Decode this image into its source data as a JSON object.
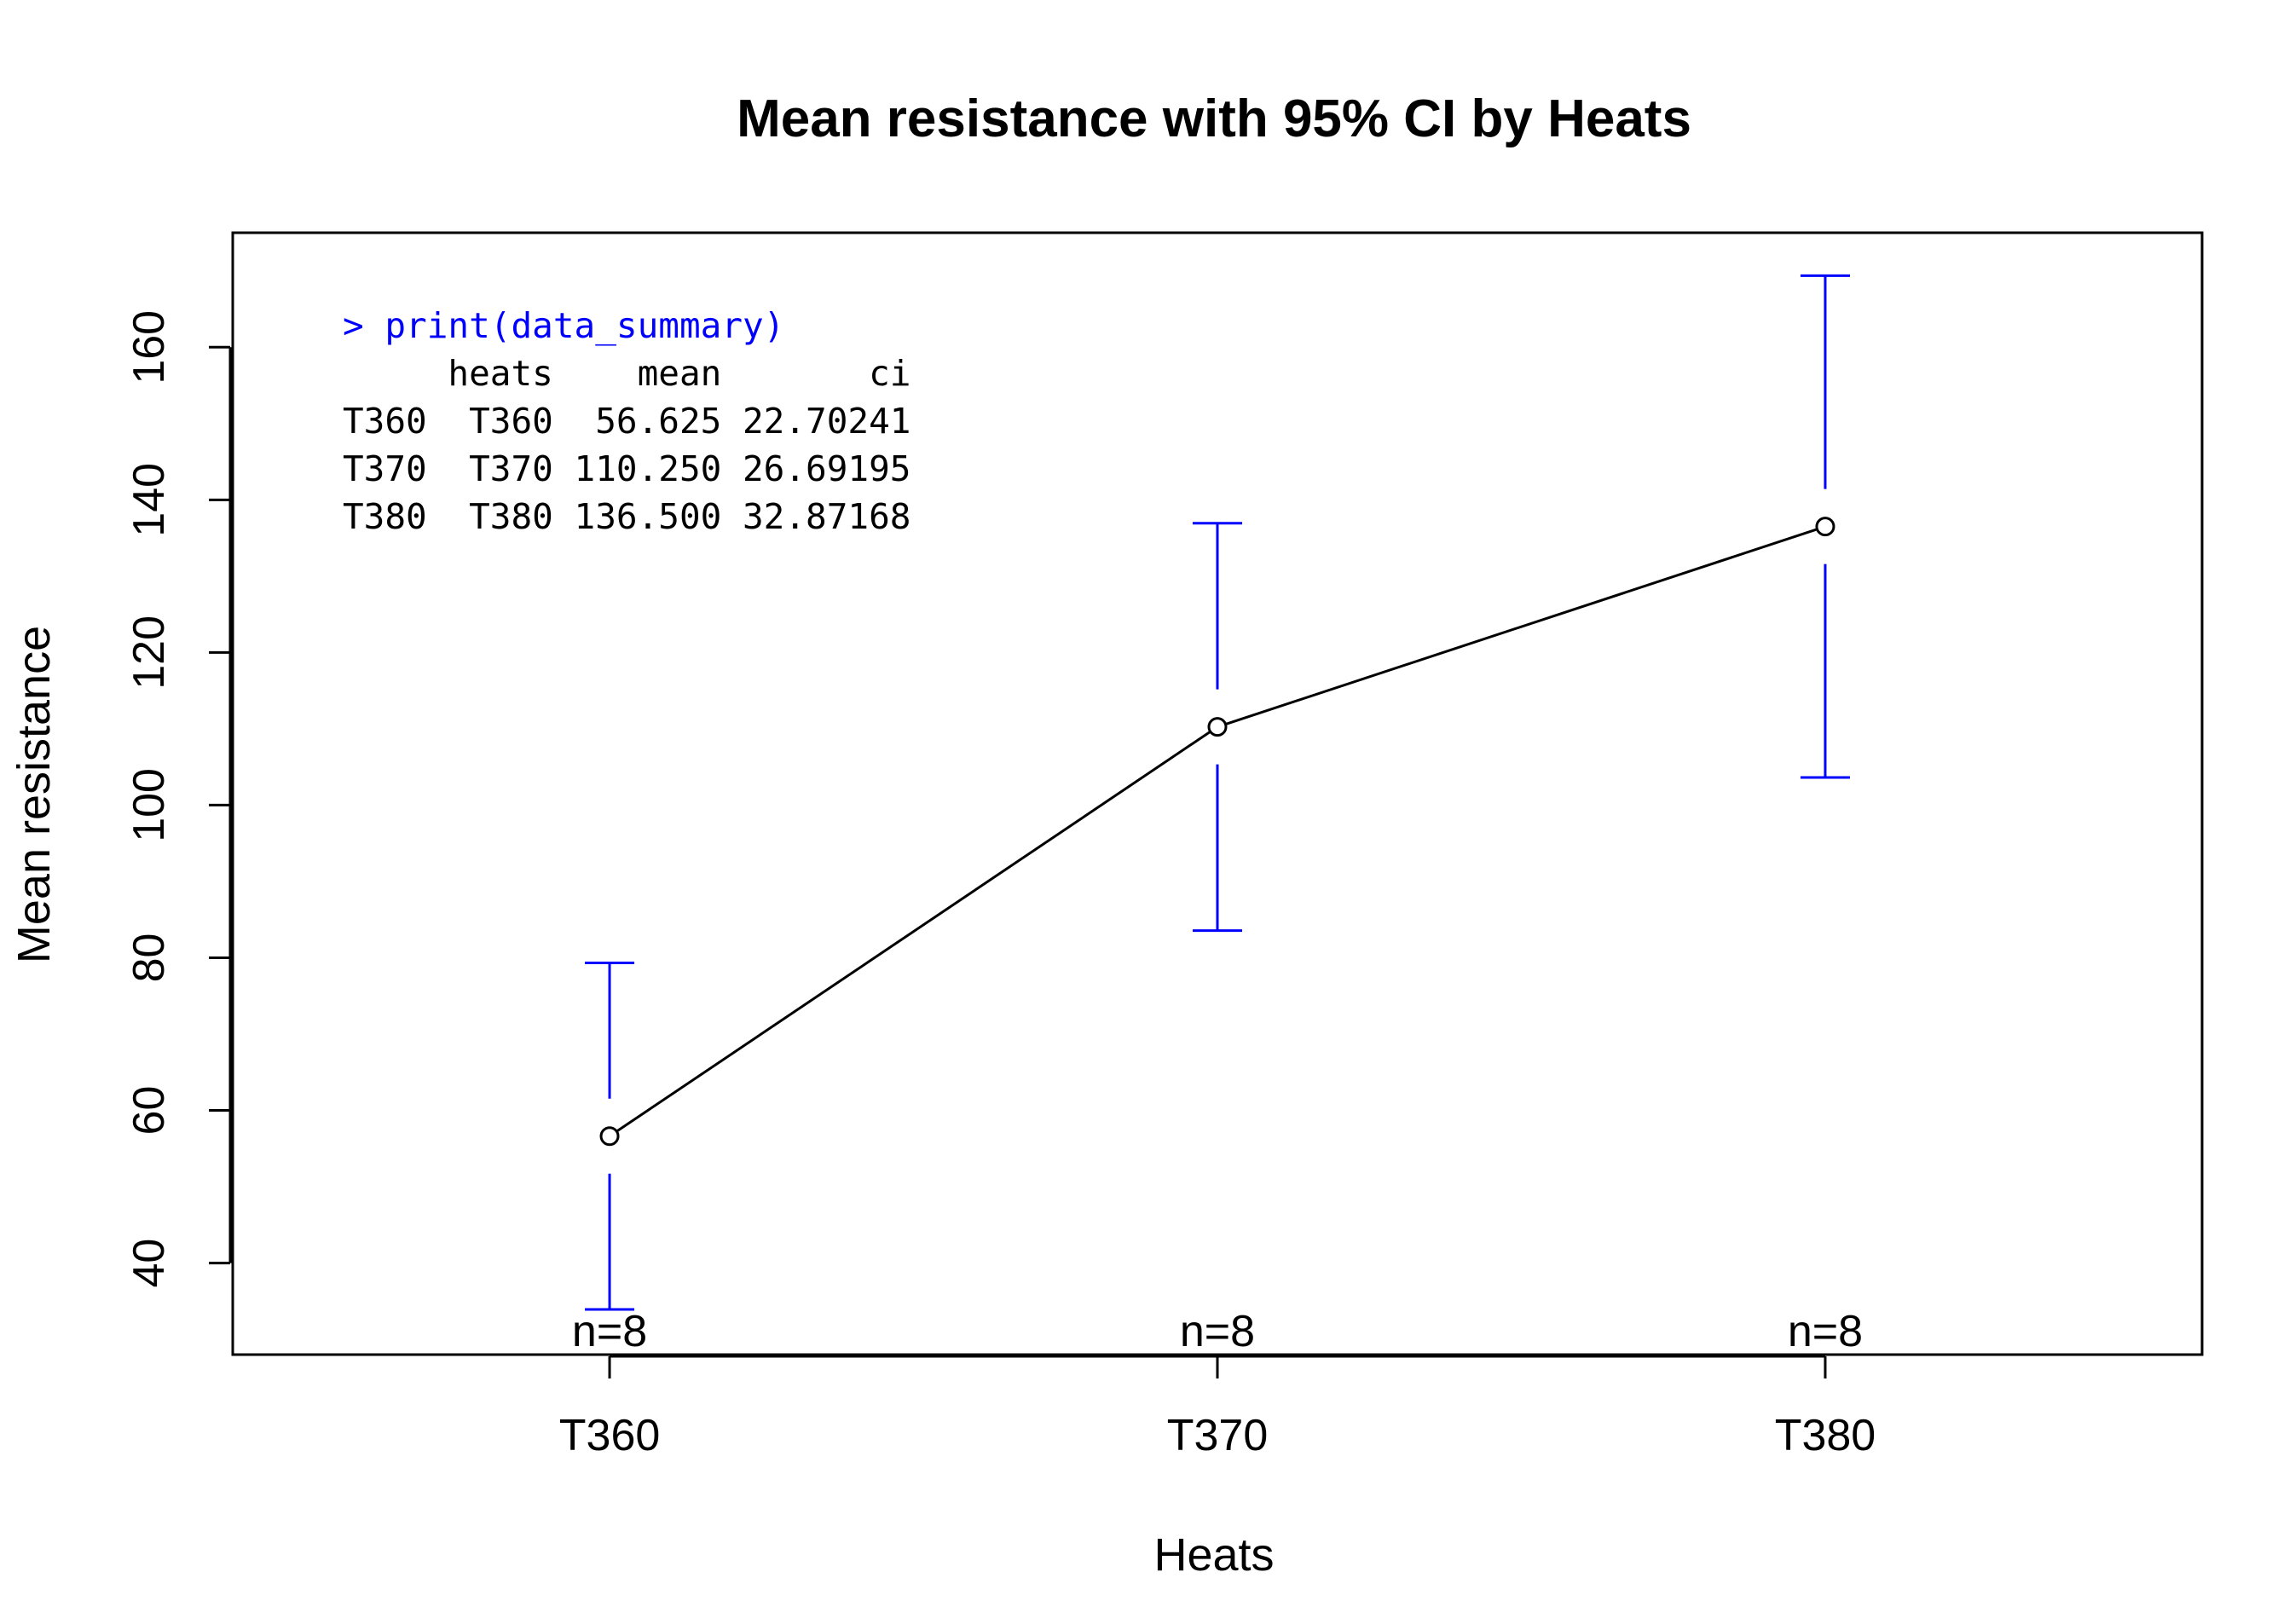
{
  "chart_data": {
    "type": "line",
    "title": "Mean resistance with 95% CI by Heats",
    "xlabel": "Heats",
    "ylabel": "Mean resistance",
    "categories": [
      "T360",
      "T370",
      "T380"
    ],
    "series": [
      {
        "values": [
          56.625,
          110.25,
          136.5
        ],
        "ci": [
          22.70241,
          26.69195,
          32.87168
        ]
      }
    ],
    "n_labels": [
      "n=8",
      "n=8",
      "n=8"
    ],
    "ylim": [
      28,
      175
    ],
    "yticks": [
      40,
      60,
      80,
      100,
      120,
      140,
      160
    ],
    "grid": false,
    "colors": {
      "line": "#000000",
      "error_bars": "#0000ff"
    }
  },
  "console": {
    "command": "> print(data_summary)",
    "lines": [
      "     heats    mean       ci",
      "T360  T360  56.625 22.70241",
      "T370  T370 110.250 26.69195",
      "T380  T380 136.500 32.87168"
    ]
  }
}
